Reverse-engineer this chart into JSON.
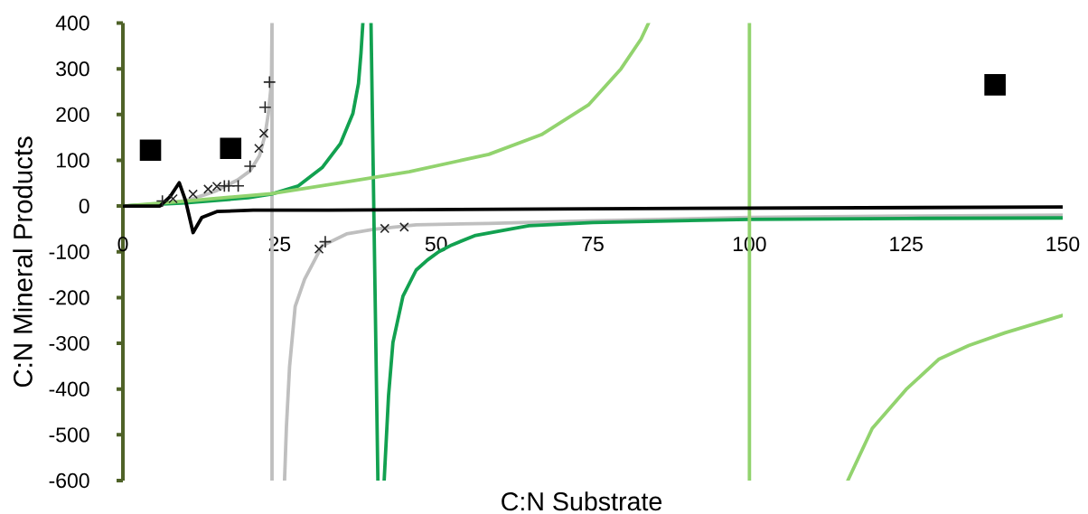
{
  "chart_data": {
    "type": "line",
    "xlabel": "C:N Substrate",
    "ylabel": "C:N Mineral Products",
    "xlim": [
      0,
      150
    ],
    "ylim": [
      -600,
      400
    ],
    "xticks": [
      0,
      25,
      50,
      75,
      100,
      125,
      150
    ],
    "yticks": [
      -600,
      -500,
      -400,
      -300,
      -200,
      -100,
      0,
      100,
      200,
      300,
      400
    ],
    "series": [
      {
        "color": "#bfbfbf",
        "marker": "none",
        "line_style": "solid",
        "x": [
          0,
          5,
          8,
          10.7,
          13.6,
          15,
          18.3,
          20.3,
          21.8,
          22.7,
          23.2,
          23.7,
          23.8,
          23.8,
          null,
          25.8,
          26.1,
          26.6,
          27.5,
          29,
          31.8,
          35.7,
          40,
          46.8,
          58.3,
          75,
          100,
          125,
          150
        ],
        "values": [
          0,
          4,
          8,
          14,
          27,
          34,
          57,
          77,
          110,
          156,
          201,
          268,
          400,
          -600,
          null,
          -600,
          -482,
          -351,
          -219,
          -160,
          -87,
          -61,
          -51,
          -41,
          -38,
          -32,
          -25,
          -22,
          -20
        ]
      },
      {
        "color": "#12a150",
        "marker": "none",
        "line_style": "solid",
        "x": [
          0,
          10,
          20,
          23.7,
          28,
          31.8,
          34.7,
          36.7,
          37.6,
          38,
          38.3,
          null,
          39.6,
          40.7,
          null,
          41.7,
          42.4,
          43.1,
          44.7,
          46.8,
          48.6,
          50.4,
          52.5,
          56.3,
          64.8,
          75,
          100,
          125,
          150
        ],
        "values": [
          0,
          7,
          18,
          26,
          44,
          84,
          136,
          202,
          268,
          334,
          400,
          null,
          400,
          -600,
          null,
          -600,
          -414,
          -298,
          -197,
          -140,
          -118,
          -100,
          -85,
          -64,
          -43,
          -36,
          -29,
          -27,
          -26
        ]
      },
      {
        "color": "#92d36e",
        "marker": "none",
        "line_style": "solid",
        "x": [
          0,
          10,
          23.7,
          35.2,
          45.7,
          58.4,
          66.8,
          74.3,
          79.5,
          82.7,
          83.9,
          null,
          100,
          100,
          null,
          115.7,
          119.6,
          125,
          130.2,
          135,
          140.8,
          150
        ],
        "values": [
          0,
          11,
          27,
          52,
          75,
          113,
          156,
          221,
          300,
          365,
          400,
          null,
          400,
          -600,
          null,
          -600,
          -486,
          -401,
          -335,
          -305,
          -277,
          -239
        ]
      },
      {
        "color": "#000000",
        "marker": "none",
        "line_style": "solid",
        "x": [
          0,
          5.9,
          7.5,
          9,
          10,
          11.2,
          12.6,
          15,
          20.8,
          32.8,
          75,
          150
        ],
        "values": [
          0,
          0,
          20,
          51,
          12,
          -58,
          -25,
          -12,
          -9,
          -9,
          -6,
          -2
        ]
      },
      {
        "type": "scatter",
        "color": "#000000",
        "marker": "square",
        "x": [
          4.4,
          17.2,
          139.2
        ],
        "values": [
          122,
          126,
          265
        ]
      },
      {
        "type": "scatter",
        "color": "#262626",
        "marker": "cross",
        "x": [
          8,
          11.2,
          13.6,
          15,
          21.7,
          22.5,
          31.3,
          41.8,
          44.9
        ],
        "values": [
          16,
          26,
          37,
          43,
          126,
          159,
          -94,
          -49,
          -46
        ]
      },
      {
        "type": "scatter",
        "color": "#262626",
        "marker": "plus",
        "x": [
          6.3,
          16.2,
          16.9,
          18.4,
          20.3,
          22.7,
          23.4,
          32.3
        ],
        "values": [
          11,
          44,
          44,
          44,
          87,
          216,
          271,
          -78
        ]
      }
    ]
  }
}
